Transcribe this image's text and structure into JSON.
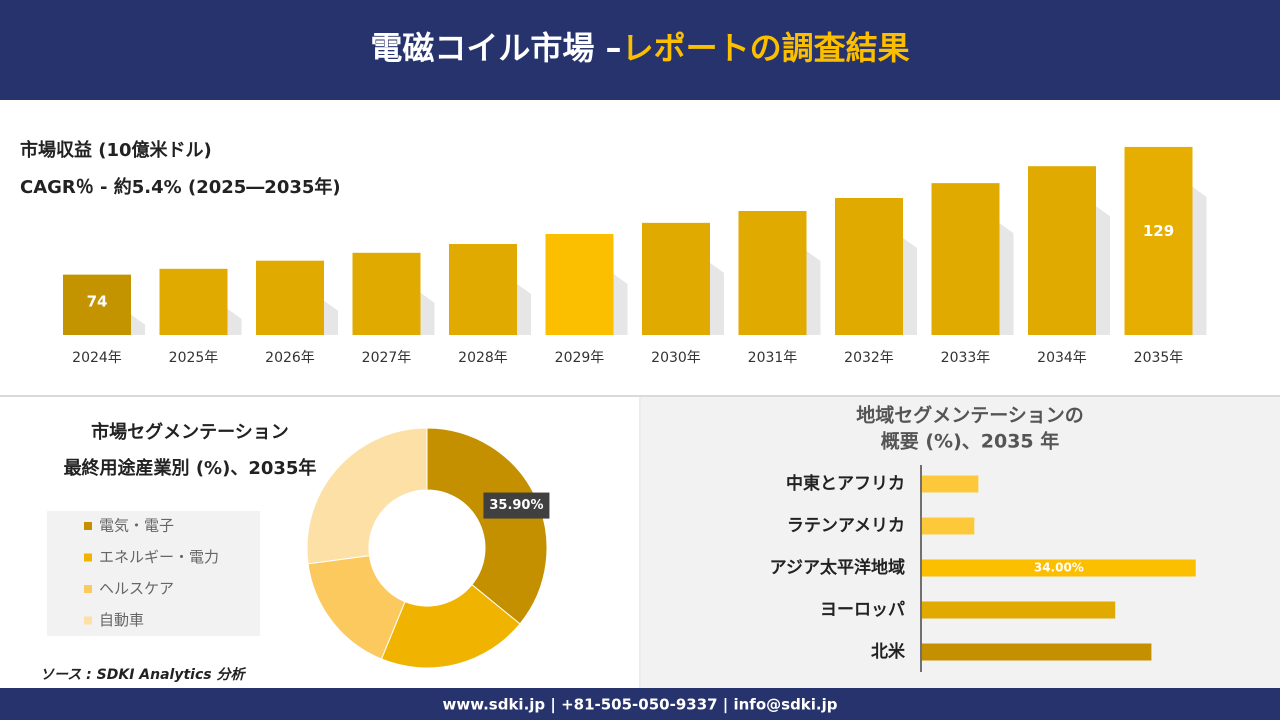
{
  "header": {
    "title": "電磁コイル市場 –",
    "title_highlight": "レポートの調査結果"
  },
  "chart_data": [
    {
      "type": "bar",
      "title": "市場収益 (10億米ドル)",
      "subtitle": "CAGR％ - 約5.4% (2025―2035年)",
      "categories": [
        "2024年",
        "2025年",
        "2026年",
        "2027年",
        "2028年",
        "2029年",
        "2030年",
        "2031年",
        "2032年",
        "2033年",
        "2034年",
        "2035年"
      ],
      "values": [
        74,
        76.5,
        80,
        83.4,
        87.2,
        91.5,
        96.3,
        101.4,
        107,
        113.4,
        120.7,
        129
      ],
      "value_labels": [
        "74",
        null,
        null,
        null,
        null,
        null,
        null,
        null,
        null,
        null,
        null,
        "129"
      ],
      "colors": [
        "#c49300",
        "#e0aa00",
        "#e0aa00",
        "#e0aa00",
        "#e0aa00",
        "#fbbf00",
        "#e0aa00",
        "#e0aa00",
        "#e0aa00",
        "#e0aa00",
        "#e0aa00",
        "#e6ae00"
      ],
      "ylim": [
        48,
        135
      ]
    },
    {
      "type": "donut",
      "title": "市場セグメンテーション",
      "subtitle": "最終用途産業別 (%)、2035年",
      "categories": [
        "電気・電子",
        "エネルギー・電力",
        "ヘルスケア",
        "自動車"
      ],
      "values": [
        35.9,
        20.3,
        16.7,
        27.1
      ],
      "value_labels": [
        "35.90%",
        null,
        null,
        null
      ],
      "colors": [
        "#c49000",
        "#f0b400",
        "#fcc95e",
        "#fde0a6"
      ]
    },
    {
      "type": "barh",
      "title": [
        "地域セグメンテーションの",
        "概要 (%)、2035 年"
      ],
      "categories": [
        "中東とアフリカ",
        "ラテンアメリカ",
        "アジア太平洋地域",
        "ヨーロッパ",
        "北米"
      ],
      "values": [
        7,
        6.5,
        34,
        24,
        28.5
      ],
      "value_labels": [
        null,
        null,
        "34.00%",
        null,
        null
      ],
      "colors": [
        "#fdc93a",
        "#fdc93a",
        "#fbbf00",
        "#e0aa00",
        "#c49000"
      ],
      "xlim": [
        0,
        40
      ]
    }
  ],
  "source": "ソース : SDKI Analytics 分析",
  "footer": {
    "contact": "www.sdki.jp | +81-505-050-9337 | info@sdki.jp"
  }
}
